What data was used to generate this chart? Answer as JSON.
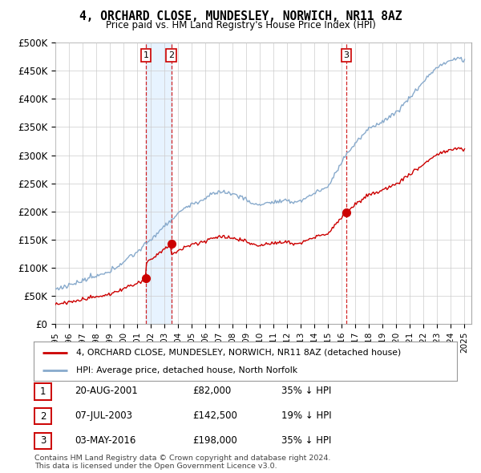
{
  "title": "4, ORCHARD CLOSE, MUNDESLEY, NORWICH, NR11 8AZ",
  "subtitle": "Price paid vs. HM Land Registry's House Price Index (HPI)",
  "ylim": [
    0,
    500000
  ],
  "yticks": [
    0,
    50000,
    100000,
    150000,
    200000,
    250000,
    300000,
    350000,
    400000,
    450000,
    500000
  ],
  "ytick_labels": [
    "£0",
    "£50K",
    "£100K",
    "£150K",
    "£200K",
    "£250K",
    "£300K",
    "£350K",
    "£400K",
    "£450K",
    "£500K"
  ],
  "transactions": [
    {
      "date_num": 2001.64,
      "price": 82000,
      "label": "1"
    },
    {
      "date_num": 2003.51,
      "price": 142500,
      "label": "2"
    },
    {
      "date_num": 2016.34,
      "price": 198000,
      "label": "3"
    }
  ],
  "vline_color": "#cc0000",
  "hpi_color": "#88aacc",
  "property_color": "#cc0000",
  "shade_color": "#ddeeff",
  "legend_label_property": "4, ORCHARD CLOSE, MUNDESLEY, NORWICH, NR11 8AZ (detached house)",
  "legend_label_hpi": "HPI: Average price, detached house, North Norfolk",
  "table_rows": [
    {
      "num": "1",
      "date": "20-AUG-2001",
      "price": "£82,000",
      "pct": "35% ↓ HPI"
    },
    {
      "num": "2",
      "date": "07-JUL-2003",
      "price": "£142,500",
      "pct": "19% ↓ HPI"
    },
    {
      "num": "3",
      "date": "03-MAY-2016",
      "price": "£198,000",
      "pct": "35% ↓ HPI"
    }
  ],
  "footer": "Contains HM Land Registry data © Crown copyright and database right 2024.\nThis data is licensed under the Open Government Licence v3.0.",
  "background_color": "#ffffff",
  "grid_color": "#cccccc",
  "xlim_start": 1995.0,
  "xlim_end": 2025.5
}
